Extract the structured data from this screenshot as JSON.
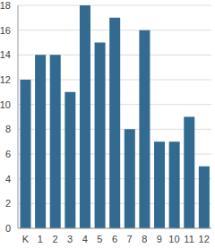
{
  "chart_data": {
    "type": "bar",
    "categories": [
      "K",
      "1",
      "2",
      "3",
      "4",
      "5",
      "6",
      "7",
      "8",
      "9",
      "10",
      "11",
      "12"
    ],
    "values": [
      12,
      14,
      14,
      11,
      18,
      15,
      17,
      8,
      16,
      7,
      7,
      9,
      5
    ],
    "color": "#336a90",
    "ylim": [
      0,
      18
    ],
    "yticks": [
      0,
      2,
      4,
      6,
      8,
      10,
      12,
      14,
      16,
      18
    ],
    "grid": true
  }
}
